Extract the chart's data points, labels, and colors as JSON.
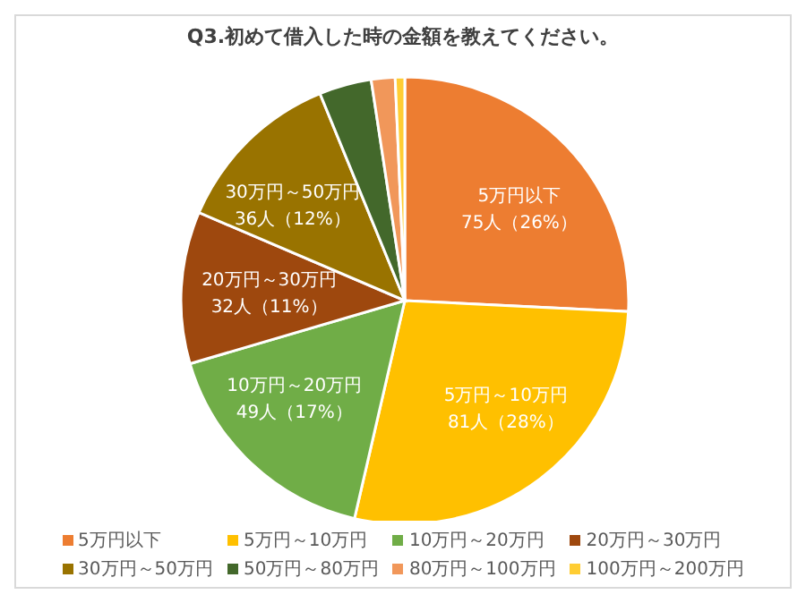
{
  "chart_data": {
    "type": "pie",
    "title": "Q3.初めて借入した時の金額を教えてください。",
    "categories": [
      "5万円以下",
      "5万円～10万円",
      "10万円～20万円",
      "20万円～30万円",
      "30万円～50万円",
      "50万円～80万円",
      "80万円～100万円",
      "100万円～200万円"
    ],
    "values": [
      75,
      81,
      49,
      32,
      36,
      11,
      5,
      2
    ],
    "colors": [
      "#ed7d31",
      "#ffc000",
      "#70ad47",
      "#9e480e",
      "#997300",
      "#43682b",
      "#f1975a",
      "#ffcd33"
    ],
    "value_labels": [
      "75人（26%）",
      "81人（28%）",
      "49人（17%）",
      "32人（11%）",
      "36人（12%）",
      null,
      null,
      null
    ],
    "legend": "bottom"
  }
}
